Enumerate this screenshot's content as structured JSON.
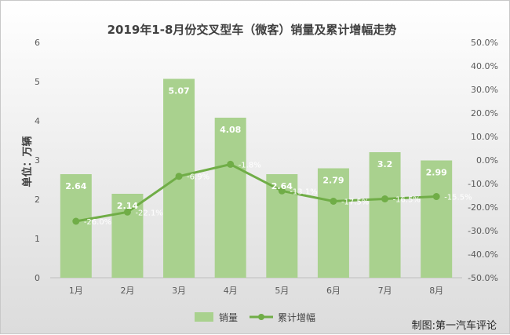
{
  "chart_data": {
    "type": "bar",
    "title": "2019年1-8月份交叉型车（微客）销量及累计增幅走势",
    "ylabel": "单位：万辆",
    "categories": [
      "1月",
      "2月",
      "3月",
      "4月",
      "5月",
      "6月",
      "7月",
      "8月"
    ],
    "ylim": [
      0,
      6
    ],
    "y2lim": [
      -50,
      50
    ],
    "y_ticks": [
      "0",
      "1",
      "2",
      "3",
      "4",
      "5",
      "6"
    ],
    "y2_ticks": [
      "-50.0%",
      "-40.0%",
      "-30.0%",
      "-20.0%",
      "-10.0%",
      "0.0%",
      "10.0%",
      "20.0%",
      "30.0%",
      "40.0%",
      "50.0%"
    ],
    "series": [
      {
        "name": "销量",
        "type": "bar",
        "axis": "left",
        "values": [
          2.64,
          2.14,
          5.07,
          4.08,
          2.64,
          2.79,
          3.2,
          2.99
        ],
        "labels": [
          "2.64",
          "2.14",
          "5.07",
          "4.08",
          "2.64",
          "2.79",
          "3.2",
          "2.99"
        ],
        "color": "#a9d18e"
      },
      {
        "name": "累计增幅",
        "type": "line",
        "axis": "right",
        "values": [
          -26.0,
          -22.1,
          -6.9,
          -1.8,
          -13.1,
          -17.5,
          -16.5,
          -15.5
        ],
        "labels": [
          "-26.0%",
          "-22.1%",
          "-6.9%",
          "-1.8%",
          "-13.1%",
          "-17.5%",
          "-16.5%",
          "-15.5%"
        ],
        "color": "#70ad47"
      }
    ],
    "grid": false,
    "legend_position": "bottom"
  },
  "credit": "制图:第一汽车评论"
}
